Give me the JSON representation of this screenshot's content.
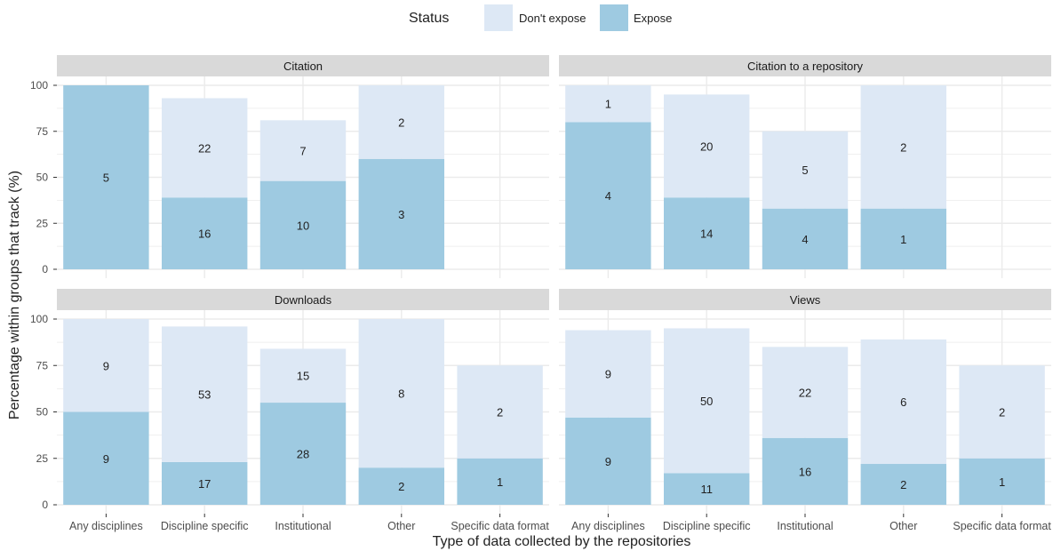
{
  "legend": {
    "title": "Status",
    "items": [
      {
        "label": "Don't expose",
        "color": "#dde8f5"
      },
      {
        "label": "Expose",
        "color": "#9ecae1"
      }
    ]
  },
  "colors": {
    "dont_expose": "#dde8f5",
    "expose": "#9ecae1",
    "strip": "#d9d9d9",
    "panel_bg": "#ffffff",
    "grid": "#ebebeb"
  },
  "chart_data": {
    "type": "bar",
    "stacked": true,
    "xlabel": "Type of data collected by the repositories",
    "ylabel": "Percentage within groups that track (%)",
    "ylim": [
      0,
      100
    ],
    "yticks": [
      0,
      25,
      50,
      75,
      100
    ],
    "categories": [
      "Any disciplines",
      "Discipline specific",
      "Institutional",
      "Other",
      "Specific data format"
    ],
    "legend_position": "top",
    "grid": true,
    "panels": [
      {
        "title": "Citation",
        "series": [
          {
            "name": "Expose",
            "values": [
              100,
              39,
              48,
              60,
              null
            ],
            "counts": [
              5,
              16,
              10,
              3,
              null
            ]
          },
          {
            "name": "Don't expose",
            "values": [
              0,
              54,
              33,
              40,
              null
            ],
            "counts": [
              null,
              22,
              7,
              2,
              null
            ]
          }
        ]
      },
      {
        "title": "Citation to a repository",
        "series": [
          {
            "name": "Expose",
            "values": [
              80,
              39,
              33,
              33,
              null
            ],
            "counts": [
              4,
              14,
              4,
              1,
              null
            ]
          },
          {
            "name": "Don't expose",
            "values": [
              20,
              56,
              42,
              67,
              null
            ],
            "counts": [
              1,
              20,
              5,
              2,
              null
            ]
          }
        ]
      },
      {
        "title": "Downloads",
        "series": [
          {
            "name": "Expose",
            "values": [
              50,
              23,
              55,
              20,
              25
            ],
            "counts": [
              9,
              17,
              28,
              2,
              1
            ]
          },
          {
            "name": "Don't expose",
            "values": [
              50,
              73,
              29,
              80,
              50
            ],
            "counts": [
              9,
              53,
              15,
              8,
              2
            ]
          }
        ]
      },
      {
        "title": "Views",
        "series": [
          {
            "name": "Expose",
            "values": [
              47,
              17,
              36,
              22,
              25
            ],
            "counts": [
              9,
              11,
              16,
              2,
              1
            ]
          },
          {
            "name": "Don't expose",
            "values": [
              47,
              78,
              49,
              67,
              50
            ],
            "counts": [
              9,
              50,
              22,
              6,
              2
            ]
          }
        ]
      }
    ]
  }
}
